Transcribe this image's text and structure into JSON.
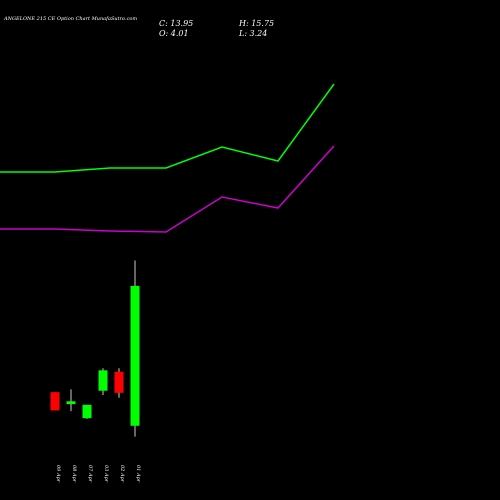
{
  "header": {
    "title": "ANGELONE 215 CE Option  Chart MunafaSutra.com",
    "close_label": "C: 13.95",
    "open_label": "O: 4.01",
    "high_label": "H: 15.75",
    "low_label": "L: 3.24"
  },
  "colors": {
    "background": "#000000",
    "up": "#00ff00",
    "down": "#ff0000",
    "upper_line": "#00ff00",
    "lower_line": "#cc00cc",
    "neutral_wick": "#ffffff"
  },
  "chart_data": {
    "type": "candlestick",
    "categories": [
      "09 Apr",
      "08 Apr",
      "07 Apr",
      "03 Apr",
      "02 Apr",
      "01 Apr"
    ],
    "ohlc": [
      {
        "date": "09 Apr",
        "open": 6.4,
        "high": 6.4,
        "low": 5.1,
        "close": 5.1,
        "direction": "down"
      },
      {
        "date": "08 Apr",
        "open": 5.55,
        "high": 6.6,
        "low": 5.05,
        "close": 5.75,
        "direction": "up"
      },
      {
        "date": "07 Apr",
        "open": 4.55,
        "high": 5.5,
        "low": 4.5,
        "close": 5.5,
        "direction": "up"
      },
      {
        "date": "03 Apr",
        "open": 6.5,
        "high": 8.1,
        "low": 6.2,
        "close": 7.95,
        "direction": "up"
      },
      {
        "date": "02 Apr",
        "open": 7.85,
        "high": 8.1,
        "low": 6.0,
        "close": 6.35,
        "direction": "down"
      },
      {
        "date": "01 Apr",
        "open": 4.01,
        "high": 15.75,
        "low": 3.24,
        "close": 13.95,
        "direction": "up"
      }
    ],
    "ylim": [
      3.0,
      16.5
    ],
    "overlay_lines": [
      {
        "color": "upper",
        "points": [
          {
            "x": 0,
            "y": 172
          },
          {
            "x": 55,
            "y": 172
          },
          {
            "x": 110,
            "y": 168
          },
          {
            "x": 166,
            "y": 168
          },
          {
            "x": 222,
            "y": 147
          },
          {
            "x": 278,
            "y": 161
          },
          {
            "x": 334,
            "y": 84
          }
        ]
      },
      {
        "color": "lower",
        "points": [
          {
            "x": 0,
            "y": 229
          },
          {
            "x": 55,
            "y": 229
          },
          {
            "x": 110,
            "y": 231
          },
          {
            "x": 166,
            "y": 232
          },
          {
            "x": 222,
            "y": 197
          },
          {
            "x": 278,
            "y": 208
          },
          {
            "x": 334,
            "y": 146
          }
        ]
      }
    ],
    "xlabel": "",
    "ylabel": ""
  }
}
